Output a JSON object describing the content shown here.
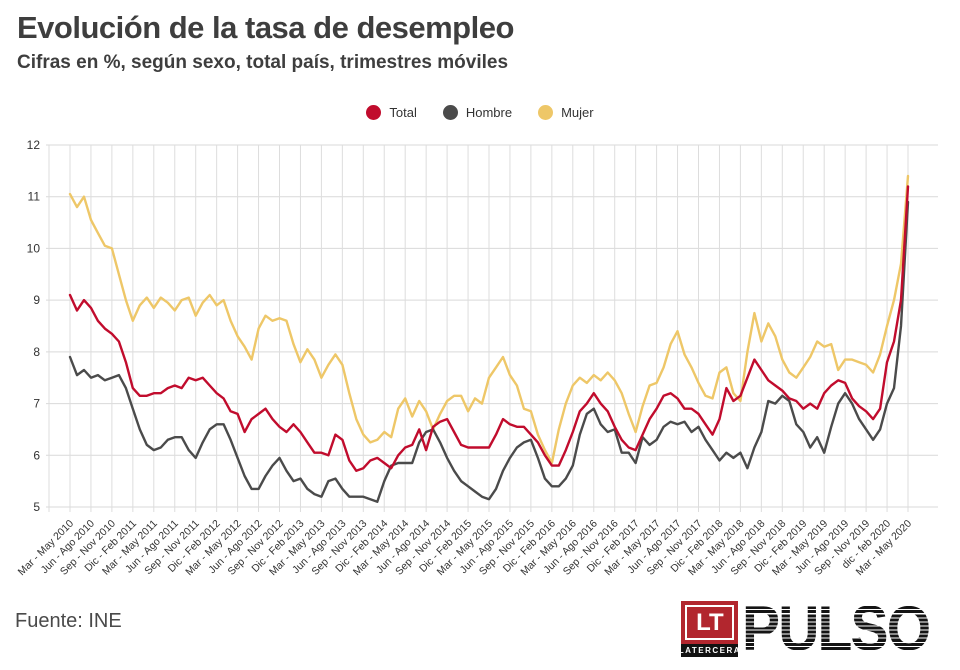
{
  "header": {
    "title": "Evolución de la tasa de desempleo",
    "subtitle": "Cifras en %, según sexo, total país, trimestres móviles"
  },
  "footer": {
    "source": "Fuente: INE",
    "logo": {
      "lt": "LT",
      "latercera": "LATERCERA",
      "pulso": "PULSO"
    }
  },
  "chart_data": {
    "type": "line",
    "title": "Evolución de la tasa de desempleo",
    "subtitle": "Cifras en %, según sexo, total país, trimestres móviles",
    "ylabel": "",
    "xlabel": "",
    "ylim": [
      5,
      12
    ],
    "yticks": [
      5,
      6,
      7,
      8,
      9,
      10,
      11,
      12
    ],
    "grid": true,
    "legend_position": "top",
    "x_tick_every_n_points": 3,
    "x_tick_labels": [
      "Mar - May 2010",
      "Jun - Ago 2010",
      "Sep - Nov 2010",
      "Dic - Feb 2011",
      "Mar - May 2011",
      "Jun - Ago 2011",
      "Sep - Nov 2011",
      "Dic - Feb 2012",
      "Mar - May 2012",
      "Jun - Ago 2012",
      "Sep - Nov 2012",
      "Dic - Feb 2013",
      "Mar - May 2013",
      "Jun - Ago 2013",
      "Sep - Nov 2013",
      "Dic - Feb 2014",
      "Mar - May 2014",
      "Jun - Ago 2014",
      "Sep - Nov 2014",
      "Dic - Feb 2015",
      "Mar - May 2015",
      "Jun - Ago 2015",
      "Sep - Nov 2015",
      "Dic - Feb 2016",
      "Mar - May 2016",
      "Jun - Ago 2016",
      "Sep - Nov 2016",
      "Dic - Feb 2017",
      "Mar - May 2017",
      "Jun - Ago 2017",
      "Sep - Nov 2017",
      "Dic - Feb 2018",
      "Mar - May 2018",
      "Jun - Ago 2018",
      "Sep - Nov 2018",
      "Dic - Feb 2019",
      "Mar - May 2019",
      "Jun - Ago 2019",
      "Sep - Nov 2019",
      "dic - feb 2020",
      "Mar - May 2020"
    ],
    "series": [
      {
        "name": "Total",
        "color": "#c10c2d",
        "values": [
          9.1,
          8.8,
          9.0,
          8.85,
          8.6,
          8.45,
          8.35,
          8.2,
          7.8,
          7.3,
          7.15,
          7.15,
          7.2,
          7.2,
          7.3,
          7.35,
          7.3,
          7.5,
          7.45,
          7.5,
          7.35,
          7.2,
          7.1,
          6.85,
          6.8,
          6.45,
          6.7,
          6.8,
          6.9,
          6.7,
          6.55,
          6.45,
          6.6,
          6.45,
          6.25,
          6.05,
          6.05,
          6.0,
          6.4,
          6.3,
          5.9,
          5.7,
          5.75,
          5.9,
          5.95,
          5.85,
          5.75,
          6.0,
          6.15,
          6.2,
          6.5,
          6.1,
          6.55,
          6.65,
          6.7,
          6.45,
          6.2,
          6.15,
          6.15,
          6.15,
          6.15,
          6.4,
          6.7,
          6.6,
          6.55,
          6.55,
          6.4,
          6.25,
          6.0,
          5.8,
          5.8,
          6.1,
          6.45,
          6.85,
          7.0,
          7.2,
          7.0,
          6.85,
          6.55,
          6.3,
          6.15,
          6.1,
          6.4,
          6.7,
          6.9,
          7.15,
          7.2,
          7.1,
          6.9,
          6.9,
          6.8,
          6.6,
          6.4,
          6.7,
          7.3,
          7.05,
          7.15,
          7.5,
          7.85,
          7.65,
          7.45,
          7.35,
          7.25,
          7.1,
          7.05,
          6.9,
          7.0,
          6.9,
          7.2,
          7.35,
          7.45,
          7.4,
          7.1,
          6.95,
          6.85,
          6.7,
          6.9,
          7.8,
          8.2,
          9.0,
          11.2
        ]
      },
      {
        "name": "Hombre",
        "color": "#4b4b4b",
        "values": [
          7.9,
          7.55,
          7.65,
          7.5,
          7.55,
          7.45,
          7.5,
          7.55,
          7.3,
          6.9,
          6.5,
          6.2,
          6.1,
          6.15,
          6.3,
          6.35,
          6.35,
          6.1,
          5.95,
          6.25,
          6.5,
          6.6,
          6.6,
          6.3,
          5.95,
          5.6,
          5.35,
          5.35,
          5.6,
          5.8,
          5.95,
          5.7,
          5.5,
          5.55,
          5.35,
          5.25,
          5.2,
          5.5,
          5.55,
          5.35,
          5.2,
          5.2,
          5.2,
          5.15,
          5.1,
          5.5,
          5.8,
          5.85,
          5.85,
          5.85,
          6.25,
          6.45,
          6.5,
          6.25,
          5.95,
          5.7,
          5.5,
          5.4,
          5.3,
          5.2,
          5.15,
          5.35,
          5.7,
          5.95,
          6.15,
          6.25,
          6.3,
          5.95,
          5.55,
          5.4,
          5.4,
          5.55,
          5.8,
          6.4,
          6.8,
          6.9,
          6.6,
          6.45,
          6.5,
          6.05,
          6.05,
          5.85,
          6.35,
          6.2,
          6.3,
          6.55,
          6.65,
          6.6,
          6.65,
          6.45,
          6.55,
          6.3,
          6.1,
          5.9,
          6.05,
          5.95,
          6.05,
          5.75,
          6.15,
          6.45,
          7.05,
          7.0,
          7.15,
          7.05,
          6.6,
          6.45,
          6.15,
          6.35,
          6.05,
          6.55,
          7.0,
          7.2,
          7.0,
          6.7,
          6.5,
          6.3,
          6.5,
          7.0,
          7.3,
          8.5,
          10.9
        ]
      },
      {
        "name": "Mujer",
        "color": "#eec768",
        "values": [
          11.05,
          10.8,
          11.0,
          10.55,
          10.3,
          10.05,
          10.0,
          9.5,
          9.0,
          8.6,
          8.9,
          9.05,
          8.85,
          9.05,
          8.95,
          8.8,
          9.0,
          9.05,
          8.7,
          8.95,
          9.1,
          8.9,
          9.0,
          8.6,
          8.3,
          8.1,
          7.85,
          8.45,
          8.7,
          8.6,
          8.65,
          8.6,
          8.15,
          7.8,
          8.05,
          7.85,
          7.5,
          7.75,
          7.95,
          7.75,
          7.2,
          6.7,
          6.4,
          6.25,
          6.3,
          6.45,
          6.35,
          6.9,
          7.1,
          6.75,
          7.05,
          6.85,
          6.5,
          6.8,
          7.05,
          7.15,
          7.15,
          6.85,
          7.1,
          7.0,
          7.5,
          7.7,
          7.9,
          7.55,
          7.35,
          6.9,
          6.85,
          6.4,
          6.1,
          5.85,
          6.5,
          7.0,
          7.35,
          7.5,
          7.4,
          7.55,
          7.45,
          7.6,
          7.45,
          7.2,
          6.8,
          6.45,
          6.95,
          7.35,
          7.4,
          7.7,
          8.15,
          8.4,
          7.95,
          7.7,
          7.4,
          7.15,
          7.1,
          7.6,
          7.7,
          7.2,
          7.05,
          8.0,
          8.75,
          8.2,
          8.55,
          8.3,
          7.85,
          7.6,
          7.5,
          7.7,
          7.9,
          8.2,
          8.1,
          8.15,
          7.65,
          7.85,
          7.85,
          7.8,
          7.75,
          7.6,
          7.95,
          8.5,
          9.0,
          9.7,
          11.4
        ]
      }
    ]
  }
}
